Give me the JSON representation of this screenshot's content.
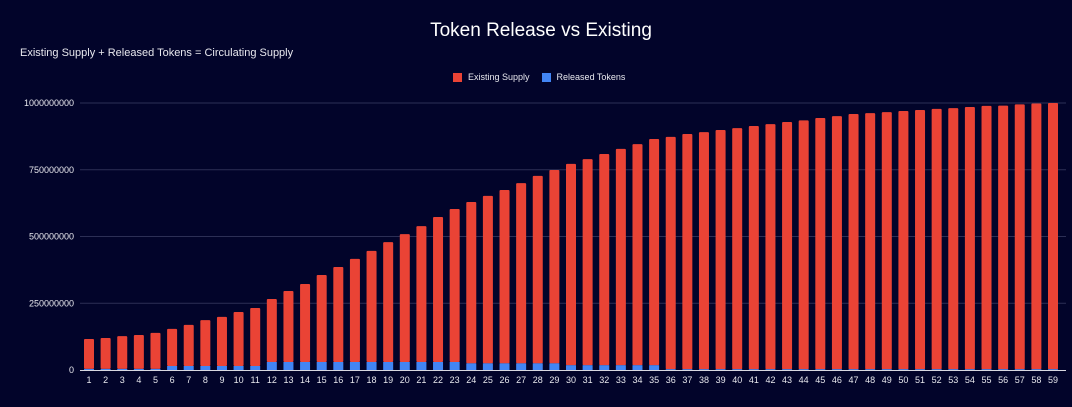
{
  "chart_data": {
    "type": "bar",
    "stacked": true,
    "title": "Token Release vs Existing",
    "subtitle": "Existing Supply  + Released Tokens = Circulating Supply",
    "xlabel": "",
    "ylabel": "",
    "ylim": [
      0,
      1000000000
    ],
    "yticks": [
      "0",
      "250000000",
      "500000000",
      "750000000",
      "1000000000"
    ],
    "ytick_values": [
      0,
      250000000,
      500000000,
      750000000,
      1000000000
    ],
    "grid": true,
    "legend_position": "top",
    "categories": [
      "1",
      "2",
      "3",
      "4",
      "5",
      "6",
      "7",
      "8",
      "9",
      "10",
      "11",
      "12",
      "13",
      "14",
      "15",
      "16",
      "17",
      "18",
      "19",
      "20",
      "21",
      "22",
      "23",
      "24",
      "25",
      "26",
      "27",
      "28",
      "29",
      "30",
      "31",
      "32",
      "33",
      "34",
      "35",
      "36",
      "37",
      "38",
      "39",
      "40",
      "41",
      "42",
      "43",
      "44",
      "45",
      "46",
      "47",
      "48",
      "49",
      "50",
      "51",
      "52",
      "53",
      "54",
      "55",
      "56",
      "57",
      "58",
      "59"
    ],
    "series": [
      {
        "name": "Released Tokens",
        "color": "#4285f4",
        "values": [
          4000000,
          4000000,
          4000000,
          4000000,
          4000000,
          15000000,
          15000000,
          15000000,
          15000000,
          15000000,
          15000000,
          30000000,
          30000000,
          30000000,
          30000000,
          30000000,
          30000000,
          30000000,
          30000000,
          30000000,
          30000000,
          30000000,
          30000000,
          25000000,
          25000000,
          25000000,
          25000000,
          25000000,
          25000000,
          18000000,
          18000000,
          18000000,
          18000000,
          18000000,
          18000000,
          3000000,
          3000000,
          3000000,
          3000000,
          3000000,
          3000000,
          3000000,
          3000000,
          3000000,
          3000000,
          3000000,
          3000000,
          3000000,
          3000000,
          3000000,
          3000000,
          3000000,
          3000000,
          3000000,
          3000000,
          3000000,
          3000000,
          3000000,
          3000000
        ]
      },
      {
        "name": "Existing Supply",
        "color": "#ea4335",
        "values": [
          112000000,
          116000000,
          123000000,
          127000000,
          135000000,
          139000000,
          154000000,
          172000000,
          184000000,
          202000000,
          217000000,
          236000000,
          266000000,
          292000000,
          326000000,
          356000000,
          386000000,
          416000000,
          449000000,
          479000000,
          509000000,
          543000000,
          573000000,
          604000000,
          627000000,
          649000000,
          675000000,
          702000000,
          724000000,
          754000000,
          772000000,
          791000000,
          810000000,
          828000000,
          847000000,
          870000000,
          881000000,
          888000000,
          896000000,
          903000000,
          911000000,
          918000000,
          926000000,
          932000000,
          941000000,
          948000000,
          956000000,
          959000000,
          963000000,
          967000000,
          971000000,
          975000000,
          978000000,
          982000000,
          986000000,
          987000000,
          992000000,
          995000000,
          997000000
        ]
      }
    ],
    "legend": [
      "Existing Supply",
      "Released Tokens"
    ]
  }
}
